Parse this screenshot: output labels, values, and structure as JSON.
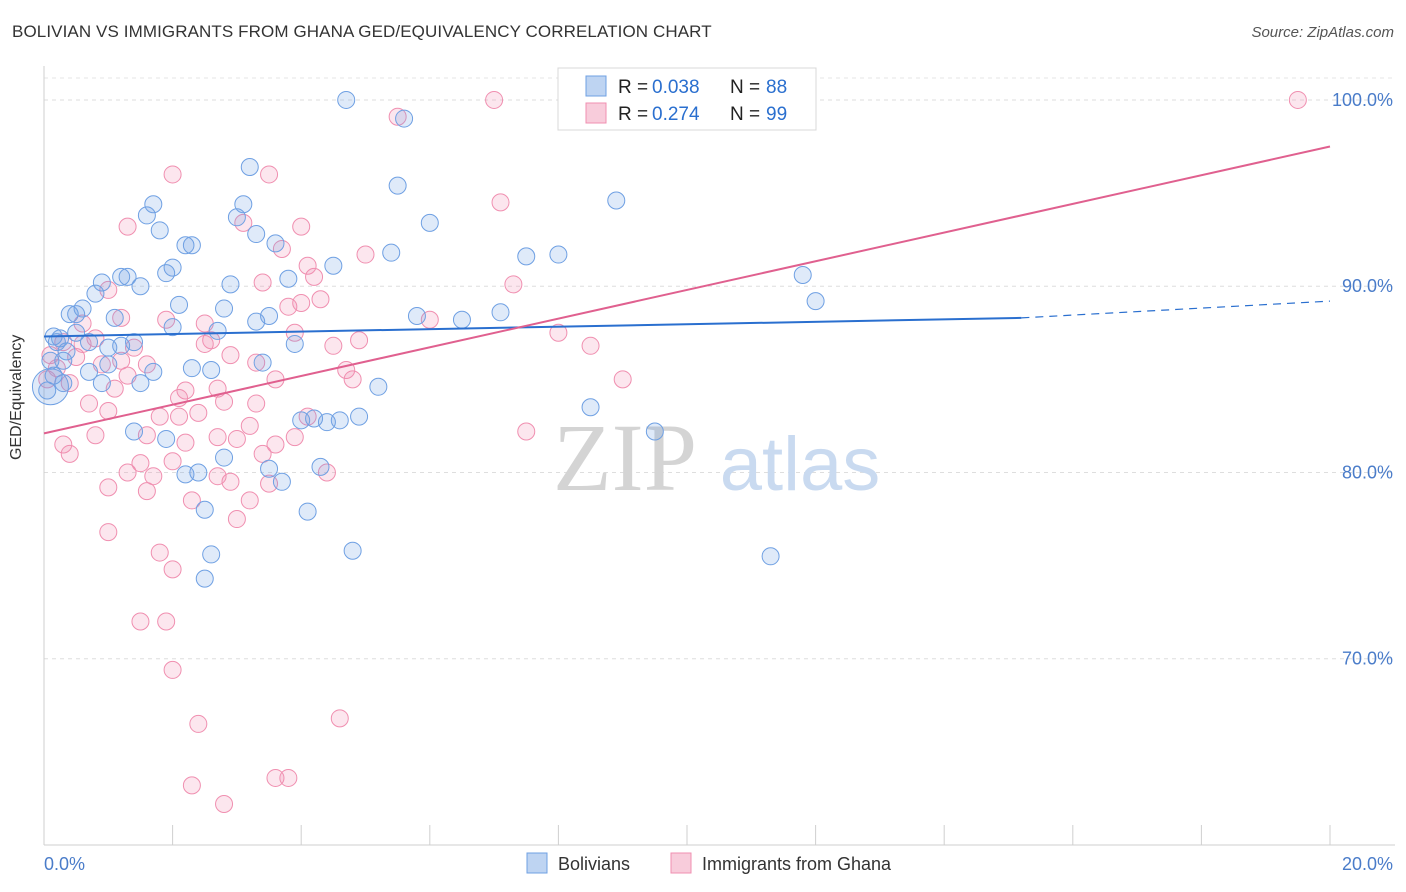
{
  "title": "BOLIVIAN VS IMMIGRANTS FROM GHANA GED/EQUIVALENCY CORRELATION CHART",
  "source": "Source: ZipAtlas.com",
  "watermark": {
    "zip": "ZIP",
    "atlas": "atlas"
  },
  "colors": {
    "blue": "#6fa0e3",
    "blue_line": "#2a6fcf",
    "pink": "#f08fb0",
    "pink_line": "#e0608f",
    "tick_text": "#4a7cc9"
  },
  "chart_data": {
    "type": "scatter",
    "title": "BOLIVIAN VS IMMIGRANTS FROM GHANA GED/EQUIVALENCY CORRELATION CHART",
    "xlabel": "",
    "ylabel": "GED/Equivalency",
    "xlim": [
      0,
      20
    ],
    "ylim": [
      60,
      101.5
    ],
    "x_tick_labels": [
      "0.0%",
      "20.0%"
    ],
    "y_ticks": [
      70,
      80,
      90,
      100
    ],
    "y_tick_labels": [
      "70.0%",
      "80.0%",
      "90.0%",
      "100.0%"
    ],
    "grid": true,
    "legend_position": "top-center",
    "stats": [
      {
        "r_label": "R = ",
        "r": "0.038",
        "n_label": "N = ",
        "n": "88"
      },
      {
        "r_label": "R = ",
        "r": "0.274",
        "n_label": "N = ",
        "n": "99"
      }
    ],
    "series": [
      {
        "name": "Bolivians",
        "color": "#6fa0e3",
        "trend": {
          "x0": 0,
          "y0": 87.3,
          "x1": 15.2,
          "y1": 88.3,
          "dashed_to_x": 20,
          "dashed_y": 89.2
        },
        "points": [
          [
            0.05,
            84.4
          ],
          [
            0.1,
            86.0
          ],
          [
            0.15,
            85.2
          ],
          [
            0.2,
            87.0
          ],
          [
            0.25,
            87.2
          ],
          [
            0.3,
            84.8
          ],
          [
            0.35,
            86.5
          ],
          [
            0.4,
            88.5
          ],
          [
            0.5,
            87.5
          ],
          [
            0.6,
            88.8
          ],
          [
            0.7,
            87.0
          ],
          [
            0.8,
            89.6
          ],
          [
            0.9,
            90.2
          ],
          [
            1.0,
            85.8
          ],
          [
            1.1,
            88.3
          ],
          [
            1.2,
            86.8
          ],
          [
            1.3,
            90.5
          ],
          [
            1.4,
            87.0
          ],
          [
            1.5,
            84.8
          ],
          [
            1.6,
            93.8
          ],
          [
            1.7,
            94.4
          ],
          [
            1.8,
            93.0
          ],
          [
            1.9,
            90.7
          ],
          [
            2.0,
            91.0
          ],
          [
            2.1,
            89.0
          ],
          [
            2.2,
            92.2
          ],
          [
            2.3,
            92.2
          ],
          [
            2.4,
            80.0
          ],
          [
            2.5,
            78.0
          ],
          [
            2.6,
            85.5
          ],
          [
            2.7,
            87.6
          ],
          [
            2.8,
            88.8
          ],
          [
            2.9,
            90.1
          ],
          [
            3.0,
            93.7
          ],
          [
            3.1,
            94.4
          ],
          [
            3.2,
            96.4
          ],
          [
            3.3,
            92.8
          ],
          [
            3.4,
            85.9
          ],
          [
            3.5,
            88.4
          ],
          [
            3.6,
            92.3
          ],
          [
            3.8,
            90.4
          ],
          [
            3.9,
            86.9
          ],
          [
            4.0,
            82.8
          ],
          [
            4.1,
            77.9
          ],
          [
            4.2,
            82.9
          ],
          [
            4.3,
            80.3
          ],
          [
            4.4,
            82.7
          ],
          [
            4.5,
            91.1
          ],
          [
            4.7,
            100.0
          ],
          [
            4.9,
            83.0
          ],
          [
            5.2,
            84.6
          ],
          [
            5.4,
            91.8
          ],
          [
            5.6,
            99.0
          ],
          [
            5.8,
            88.4
          ],
          [
            6.0,
            93.4
          ],
          [
            6.5,
            88.2
          ],
          [
            7.1,
            88.6
          ],
          [
            7.5,
            91.6
          ],
          [
            8.0,
            91.7
          ],
          [
            8.5,
            83.5
          ],
          [
            8.9,
            94.6
          ],
          [
            9.5,
            82.2
          ],
          [
            11.3,
            75.5
          ],
          [
            11.8,
            90.6
          ],
          [
            12.0,
            89.2
          ],
          [
            2.5,
            74.3
          ],
          [
            2.6,
            75.6
          ],
          [
            3.5,
            80.2
          ],
          [
            2.3,
            85.6
          ],
          [
            1.7,
            85.4
          ],
          [
            1.4,
            82.2
          ],
          [
            0.9,
            84.8
          ],
          [
            1.9,
            81.8
          ],
          [
            2.2,
            79.9
          ],
          [
            2.8,
            80.8
          ],
          [
            3.7,
            79.5
          ],
          [
            4.8,
            75.8
          ],
          [
            5.5,
            95.4
          ],
          [
            1.2,
            90.5
          ],
          [
            0.5,
            88.5
          ],
          [
            1.0,
            86.7
          ],
          [
            2.0,
            87.8
          ],
          [
            0.3,
            86.0
          ],
          [
            0.7,
            85.4
          ],
          [
            3.3,
            88.1
          ],
          [
            4.6,
            82.8
          ],
          [
            1.5,
            90.0
          ],
          [
            0.15,
            87.3
          ]
        ]
      },
      {
        "name": "Immigrants from Ghana",
        "color": "#f08fb0",
        "trend": {
          "x0": 0,
          "y0": 82.1,
          "x1": 20,
          "y1": 97.5
        },
        "points": [
          [
            0.05,
            85.0
          ],
          [
            0.1,
            86.3
          ],
          [
            0.2,
            85.6
          ],
          [
            0.3,
            87.0
          ],
          [
            0.4,
            81.0
          ],
          [
            0.5,
            86.2
          ],
          [
            0.6,
            88.0
          ],
          [
            0.7,
            83.7
          ],
          [
            0.8,
            87.2
          ],
          [
            0.9,
            85.8
          ],
          [
            1.0,
            79.2
          ],
          [
            1.0,
            76.8
          ],
          [
            1.1,
            84.5
          ],
          [
            1.2,
            86.0
          ],
          [
            1.3,
            80.0
          ],
          [
            1.4,
            86.7
          ],
          [
            1.5,
            80.5
          ],
          [
            1.6,
            82.0
          ],
          [
            1.7,
            79.8
          ],
          [
            1.8,
            75.7
          ],
          [
            1.9,
            72.0
          ],
          [
            2.0,
            69.4
          ],
          [
            2.0,
            74.8
          ],
          [
            2.1,
            83.0
          ],
          [
            2.2,
            84.4
          ],
          [
            2.3,
            78.5
          ],
          [
            2.4,
            83.2
          ],
          [
            2.5,
            88.0
          ],
          [
            2.6,
            87.1
          ],
          [
            2.7,
            84.5
          ],
          [
            2.8,
            83.8
          ],
          [
            2.9,
            79.5
          ],
          [
            3.0,
            81.8
          ],
          [
            3.1,
            93.4
          ],
          [
            3.2,
            82.5
          ],
          [
            3.3,
            85.9
          ],
          [
            3.4,
            90.2
          ],
          [
            3.5,
            79.4
          ],
          [
            3.6,
            81.5
          ],
          [
            3.7,
            92.0
          ],
          [
            3.8,
            88.9
          ],
          [
            3.9,
            81.9
          ],
          [
            4.0,
            93.2
          ],
          [
            4.1,
            91.1
          ],
          [
            4.2,
            90.5
          ],
          [
            4.3,
            89.3
          ],
          [
            4.4,
            80.0
          ],
          [
            4.5,
            86.8
          ],
          [
            4.6,
            66.8
          ],
          [
            4.7,
            85.5
          ],
          [
            4.8,
            85.0
          ],
          [
            4.9,
            87.1
          ],
          [
            5.0,
            91.7
          ],
          [
            5.5,
            99.1
          ],
          [
            6.0,
            88.2
          ],
          [
            7.0,
            100.0
          ],
          [
            7.1,
            94.5
          ],
          [
            7.3,
            90.1
          ],
          [
            7.5,
            82.2
          ],
          [
            8.0,
            87.5
          ],
          [
            8.5,
            86.8
          ],
          [
            9.0,
            85.0
          ],
          [
            19.5,
            100.0
          ],
          [
            2.0,
            96.0
          ],
          [
            2.3,
            63.2
          ],
          [
            2.8,
            62.2
          ],
          [
            3.6,
            63.6
          ],
          [
            3.8,
            63.6
          ],
          [
            2.4,
            66.5
          ],
          [
            1.5,
            72.0
          ],
          [
            3.5,
            96.0
          ],
          [
            1.3,
            93.2
          ],
          [
            1.8,
            83.0
          ],
          [
            2.2,
            81.6
          ],
          [
            2.7,
            79.8
          ],
          [
            3.0,
            77.5
          ],
          [
            3.2,
            78.5
          ],
          [
            3.4,
            81.0
          ],
          [
            3.6,
            85.0
          ],
          [
            3.9,
            87.5
          ],
          [
            4.1,
            83.0
          ],
          [
            1.0,
            89.8
          ],
          [
            1.2,
            88.3
          ],
          [
            1.6,
            85.8
          ],
          [
            1.9,
            88.2
          ],
          [
            2.1,
            84.0
          ],
          [
            0.4,
            84.8
          ],
          [
            0.6,
            86.9
          ],
          [
            0.8,
            82.0
          ],
          [
            1.0,
            83.3
          ],
          [
            2.5,
            86.9
          ],
          [
            2.9,
            86.3
          ],
          [
            3.3,
            83.7
          ],
          [
            4.0,
            89.1
          ],
          [
            2.7,
            81.9
          ],
          [
            1.6,
            79.0
          ],
          [
            0.3,
            81.5
          ],
          [
            2.0,
            80.6
          ],
          [
            1.3,
            85.2
          ]
        ]
      }
    ]
  }
}
